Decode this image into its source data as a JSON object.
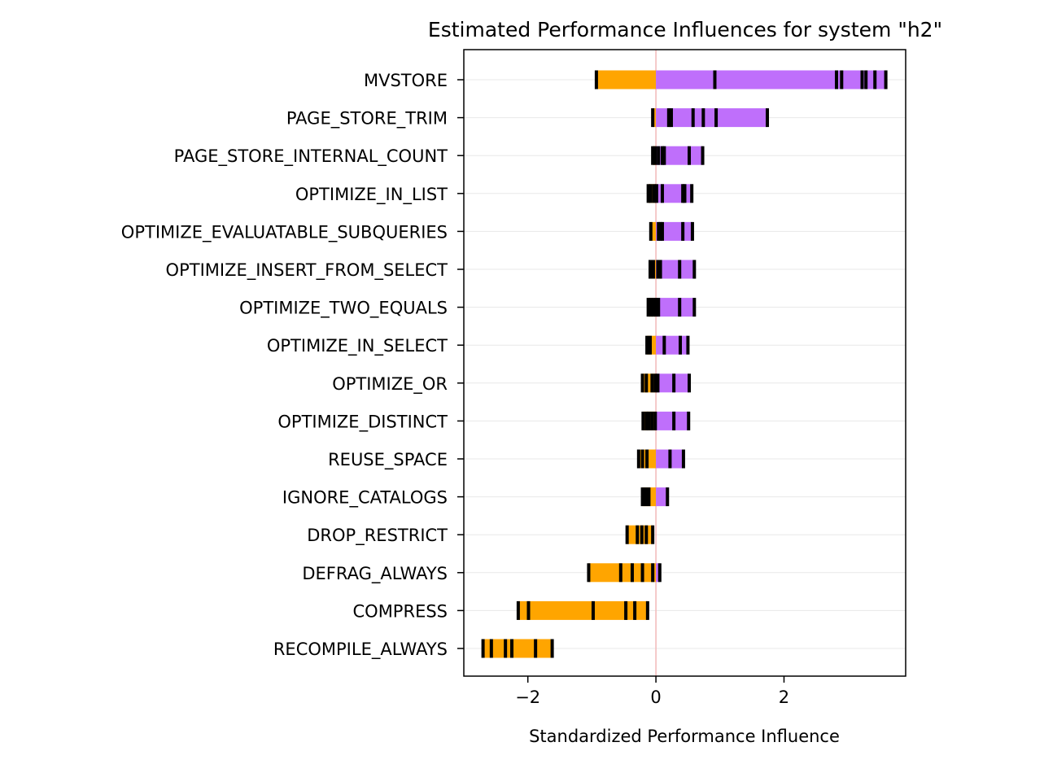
{
  "chart_data": {
    "type": "bar",
    "orientation": "horizontal",
    "title": "Estimated Performance Influences for system \"h2\"",
    "xlabel": "Standardized Performance Influence",
    "ylabel": "",
    "xlim": [
      -3.0,
      3.9
    ],
    "xticks": [
      {
        "value": -2,
        "label": "−2"
      },
      {
        "value": 0,
        "label": "0"
      },
      {
        "value": 2,
        "label": "2"
      }
    ],
    "grid": "horizontal",
    "zero_line": 0,
    "colors": {
      "negative": "#ffa500",
      "positive": "#bf6ffb",
      "marker": "#000000",
      "zero_line": "#f2b8b8",
      "grid": "#e8e8e8"
    },
    "categories": [
      "MVSTORE",
      "PAGE_STORE_TRIM",
      "PAGE_STORE_INTERNAL_COUNT",
      "OPTIMIZE_IN_LIST",
      "OPTIMIZE_EVALUATABLE_SUBQUERIES",
      "OPTIMIZE_INSERT_FROM_SELECT",
      "OPTIMIZE_TWO_EQUALS",
      "OPTIMIZE_IN_SELECT",
      "OPTIMIZE_OR",
      "OPTIMIZE_DISTINCT",
      "REUSE_SPACE",
      "IGNORE_CATALOGS",
      "DROP_RESTRICT",
      "DEFRAG_ALWAYS",
      "COMPRESS",
      "RECOMPILE_ALWAYS"
    ],
    "ranges": [
      {
        "min": -0.93,
        "max": 3.59,
        "samples": [
          -0.93,
          0.92,
          2.82,
          2.9,
          3.22,
          3.28,
          3.42,
          3.59
        ]
      },
      {
        "min": -0.05,
        "max": 1.74,
        "samples": [
          -0.05,
          0.2,
          0.24,
          0.58,
          0.74,
          0.94,
          1.74
        ]
      },
      {
        "min": -0.05,
        "max": 0.73,
        "samples": [
          -0.05,
          -0.01,
          0.04,
          0.1,
          0.13,
          0.52,
          0.73
        ]
      },
      {
        "min": -0.12,
        "max": 0.56,
        "samples": [
          -0.12,
          -0.08,
          -0.03,
          0.01,
          0.1,
          0.42,
          0.45,
          0.56
        ]
      },
      {
        "min": -0.08,
        "max": 0.57,
        "samples": [
          -0.08,
          0.04,
          0.07,
          0.1,
          0.42,
          0.57
        ]
      },
      {
        "min": -0.09,
        "max": 0.6,
        "samples": [
          -0.09,
          -0.04,
          0.03,
          0.07,
          0.37,
          0.6
        ]
      },
      {
        "min": -0.12,
        "max": 0.6,
        "samples": [
          -0.12,
          -0.08,
          -0.04,
          0.0,
          0.04,
          0.37,
          0.6
        ]
      },
      {
        "min": -0.14,
        "max": 0.5,
        "samples": [
          -0.14,
          -0.09,
          0.13,
          0.38,
          0.5
        ]
      },
      {
        "min": -0.21,
        "max": 0.52,
        "samples": [
          -0.21,
          -0.15,
          -0.06,
          -0.01,
          0.03,
          0.28,
          0.52
        ]
      },
      {
        "min": -0.2,
        "max": 0.51,
        "samples": [
          -0.2,
          -0.15,
          -0.11,
          -0.06,
          -0.01,
          0.28,
          0.51
        ]
      },
      {
        "min": -0.27,
        "max": 0.43,
        "samples": [
          -0.27,
          -0.21,
          -0.14,
          0.22,
          0.43
        ]
      },
      {
        "min": -0.21,
        "max": 0.18,
        "samples": [
          -0.21,
          -0.16,
          -0.11,
          0.18
        ]
      },
      {
        "min": -0.45,
        "max": -0.05,
        "samples": [
          -0.45,
          -0.29,
          -0.22,
          -0.15,
          -0.05
        ]
      },
      {
        "min": -1.05,
        "max": 0.06,
        "samples": [
          -1.05,
          -0.55,
          -0.37,
          -0.21,
          -0.05,
          0.06
        ]
      },
      {
        "min": -2.15,
        "max": -0.13,
        "samples": [
          -2.15,
          -1.99,
          -0.98,
          -0.47,
          -0.33,
          -0.13
        ]
      },
      {
        "min": -2.7,
        "max": -1.62,
        "samples": [
          -2.7,
          -2.57,
          -2.35,
          -2.25,
          -1.88,
          -1.62
        ]
      }
    ]
  }
}
